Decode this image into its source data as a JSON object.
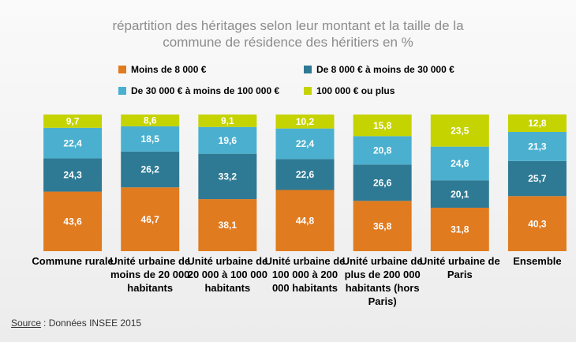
{
  "chart_data": {
    "type": "stacked_bar",
    "title": "répartition  des héritages selon leur montant et la taille de la commune de résidence des héritiers en %",
    "categories": [
      "Commune rurale",
      "Unité urbaine de moins de 20 000 habitants",
      "Unité urbaine de 20 000 à 100 000 habitants",
      "Unité urbaine de 100 000 à 200 000 habitants",
      "Unité urbaine de plus de 200 000 habitants (hors Paris)",
      "Unité urbaine de Paris",
      "Ensemble"
    ],
    "series": [
      {
        "name": "Moins de 8 000 €",
        "color": "#e07b20",
        "values": [
          43.6,
          46.7,
          38.1,
          44.8,
          36.8,
          31.8,
          40.3
        ],
        "value_labels": [
          "43,6",
          "46,7",
          "38,1",
          "44,8",
          "36,8",
          "31,8",
          "40,3"
        ]
      },
      {
        "name": "De 8 000 € à moins de 30 000 €",
        "color": "#2e7a94",
        "values": [
          24.3,
          26.2,
          33.2,
          22.6,
          26.6,
          20.1,
          25.7
        ],
        "value_labels": [
          "24,3",
          "26,2",
          "33,2",
          "22,6",
          "26,6",
          "20,1",
          "25,7"
        ]
      },
      {
        "name": "De 30 000  € à moins de 100 000 €",
        "color": "#4bb0cf",
        "values": [
          22.4,
          18.5,
          19.6,
          22.4,
          20.8,
          24.6,
          21.3
        ],
        "value_labels": [
          "22,4",
          "18,5",
          "19,6",
          "22,4",
          "20,8",
          "24,6",
          "21,3"
        ]
      },
      {
        "name": "100 000 € ou plus",
        "color": "#c5d300",
        "values": [
          9.7,
          8.6,
          9.1,
          10.2,
          15.8,
          23.5,
          12.8
        ],
        "value_labels": [
          "9,7",
          "8,6",
          "9,1",
          "10,2",
          "15,8",
          "23,5",
          "12,8"
        ]
      }
    ],
    "ylim": [
      0,
      100
    ],
    "source_label": "Source",
    "source_text": ": Données INSEE 2015"
  }
}
